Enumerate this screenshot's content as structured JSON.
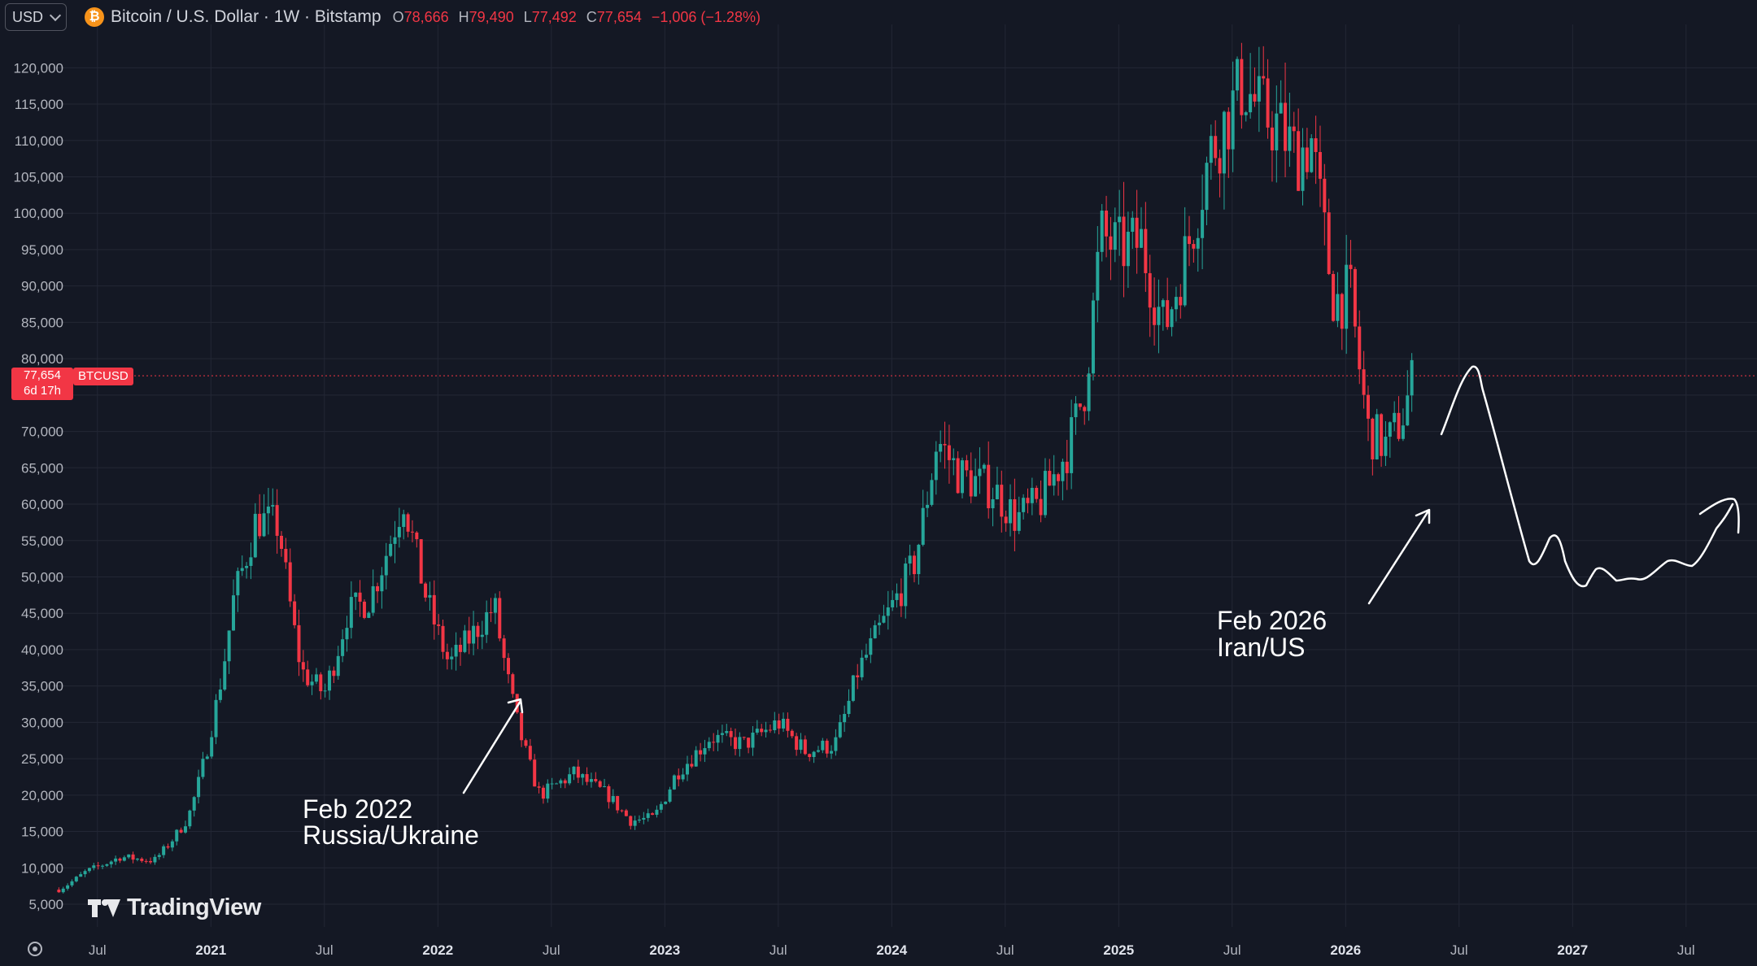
{
  "header": {
    "currency": "USD",
    "btc_icon": "bitcoin-icon",
    "symbol_title": "Bitcoin / U.S. Dollar · 1W · Bitstamp",
    "open_label": "O",
    "open": "78,666",
    "high_label": "H",
    "high": "79,490",
    "low_label": "L",
    "low": "77,492",
    "close_label": "C",
    "close": "77,654",
    "change": "−1,006 (−1.28%)"
  },
  "price_tag": {
    "price": "77,654",
    "countdown": "6d 17h",
    "symbol": "BTCUSD"
  },
  "logo": "TradingView",
  "colors": {
    "background": "#141824",
    "up": "#26a69a",
    "down": "#f23645",
    "grid": "#232735",
    "annotation": "#ffffff"
  },
  "chart_data": {
    "type": "candlestick",
    "ylim": [
      3000,
      127000
    ],
    "xlim": [
      2020.3,
      2027.53
    ],
    "current_price": 77654,
    "yticks": [
      5000,
      10000,
      15000,
      20000,
      25000,
      30000,
      35000,
      40000,
      45000,
      50000,
      55000,
      60000,
      65000,
      70000,
      75000,
      80000,
      85000,
      90000,
      95000,
      100000,
      105000,
      110000,
      115000,
      120000
    ],
    "ytick_labels": [
      "5,000",
      "10,000",
      "15,000",
      "20,000",
      "25,000",
      "30,000",
      "35,000",
      "40,000",
      "45,000",
      "50,000",
      "55,000",
      "60,000",
      "65,000",
      "70,000",
      "",
      "80,000",
      "85,000",
      "90,000",
      "95,000",
      "100,000",
      "105,000",
      "110,000",
      "115,000",
      "120,000"
    ],
    "xticks": [
      {
        "x": 2020.5,
        "label": "Jul",
        "major": false
      },
      {
        "x": 2021.0,
        "label": "2021",
        "major": true
      },
      {
        "x": 2021.5,
        "label": "Jul",
        "major": false
      },
      {
        "x": 2022.0,
        "label": "2022",
        "major": true
      },
      {
        "x": 2022.5,
        "label": "Jul",
        "major": false
      },
      {
        "x": 2023.0,
        "label": "2023",
        "major": true
      },
      {
        "x": 2023.5,
        "label": "Jul",
        "major": false
      },
      {
        "x": 2024.0,
        "label": "2024",
        "major": true
      },
      {
        "x": 2024.5,
        "label": "Jul",
        "major": false
      },
      {
        "x": 2025.0,
        "label": "2025",
        "major": true
      },
      {
        "x": 2025.5,
        "label": "Jul",
        "major": false
      },
      {
        "x": 2026.0,
        "label": "2026",
        "major": true
      },
      {
        "x": 2026.5,
        "label": "Jul",
        "major": false
      },
      {
        "x": 2027.0,
        "label": "2027",
        "major": true
      },
      {
        "x": 2027.5,
        "label": "Jul",
        "major": false
      }
    ],
    "price_path": [
      [
        2020.33,
        7000
      ],
      [
        2020.45,
        9500
      ],
      [
        2020.6,
        11500
      ],
      [
        2020.75,
        11000
      ],
      [
        2020.9,
        17000
      ],
      [
        2021.0,
        29000
      ],
      [
        2021.1,
        47000
      ],
      [
        2021.2,
        58000
      ],
      [
        2021.3,
        57000
      ],
      [
        2021.4,
        37000
      ],
      [
        2021.5,
        34000
      ],
      [
        2021.6,
        45000
      ],
      [
        2021.7,
        47000
      ],
      [
        2021.85,
        61000
      ],
      [
        2021.95,
        47000
      ],
      [
        2022.05,
        38000
      ],
      [
        2022.15,
        42000
      ],
      [
        2022.25,
        46000
      ],
      [
        2022.35,
        30000
      ],
      [
        2022.45,
        20000
      ],
      [
        2022.6,
        23000
      ],
      [
        2022.75,
        20000
      ],
      [
        2022.85,
        16500
      ],
      [
        2022.95,
        16800
      ],
      [
        2023.05,
        23000
      ],
      [
        2023.2,
        28000
      ],
      [
        2023.35,
        27000
      ],
      [
        2023.5,
        30000
      ],
      [
        2023.62,
        26000
      ],
      [
        2023.75,
        27000
      ],
      [
        2023.85,
        37000
      ],
      [
        2023.95,
        43000
      ],
      [
        2024.1,
        52000
      ],
      [
        2024.2,
        69000
      ],
      [
        2024.3,
        64000
      ],
      [
        2024.45,
        62000
      ],
      [
        2024.55,
        58000
      ],
      [
        2024.65,
        60000
      ],
      [
        2024.78,
        68000
      ],
      [
        2024.85,
        76000
      ],
      [
        2024.92,
        97000
      ],
      [
        2025.0,
        95000
      ],
      [
        2025.1,
        96000
      ],
      [
        2025.2,
        84000
      ],
      [
        2025.3,
        95000
      ],
      [
        2025.4,
        108000
      ],
      [
        2025.55,
        118000
      ],
      [
        2025.62,
        114000
      ],
      [
        2025.7,
        112000
      ],
      [
        2025.78,
        108000
      ],
      [
        2025.85,
        110000
      ],
      [
        2025.95,
        88000
      ],
      [
        2026.02,
        89000
      ],
      [
        2026.1,
        70000
      ],
      [
        2026.18,
        68000
      ],
      [
        2026.25,
        72000
      ],
      [
        2026.3,
        77654
      ]
    ],
    "annotations": [
      {
        "text_line1": "Feb 2022",
        "text_line2": "Russia/Ukraine",
        "x": 2021.68,
        "y": 18200
      },
      {
        "text_line1": "Feb 2026",
        "text_line2": "Iran/US",
        "x": 2025.2,
        "y": 43600
      }
    ]
  }
}
